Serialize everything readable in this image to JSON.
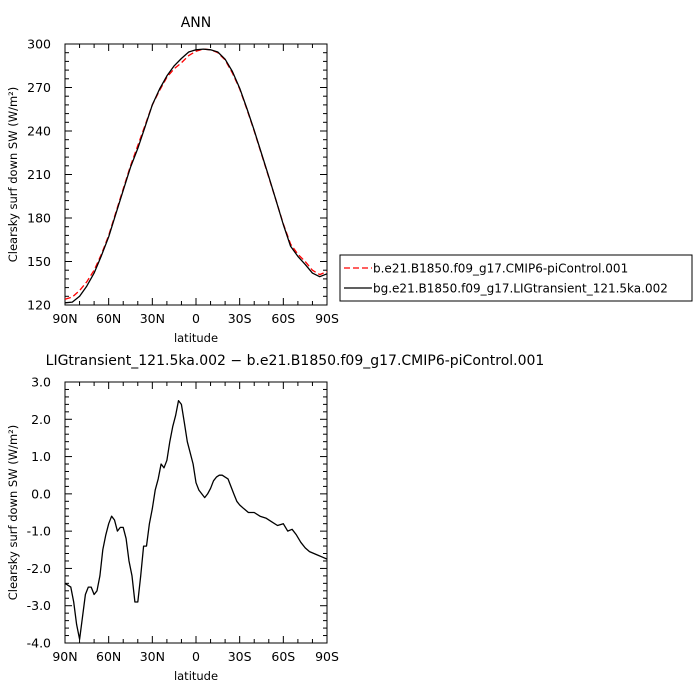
{
  "chart_data": [
    {
      "type": "line",
      "title": "ANN",
      "xlabel": "latitude",
      "ylabel": "Clearsky surf down SW (W/m²)",
      "xlim": [
        90,
        -90
      ],
      "ylim": [
        120,
        300
      ],
      "x_tick_values": [
        90,
        60,
        30,
        0,
        -30,
        -60,
        -90
      ],
      "x_tick_labels": [
        "90N",
        "60N",
        "30N",
        "0",
        "30S",
        "60S",
        "90S"
      ],
      "y_tick_values": [
        120,
        150,
        180,
        210,
        240,
        270,
        300
      ],
      "y_tick_labels": [
        "120",
        "150",
        "180",
        "210",
        "240",
        "270",
        "300"
      ],
      "grid": false,
      "legend_position": "right",
      "series": [
        {
          "name": "b.e21.B1850.f09_g17.CMIP6-piControl.001",
          "color": "#ff0000",
          "style": "dashed",
          "x": [
            90,
            85,
            80,
            75,
            70,
            65,
            60,
            55,
            50,
            45,
            40,
            35,
            30,
            25,
            20,
            15,
            10,
            5,
            0,
            -5,
            -10,
            -15,
            -20,
            -25,
            -30,
            -35,
            -40,
            -45,
            -50,
            -55,
            -60,
            -65,
            -70,
            -75,
            -80,
            -85,
            -90
          ],
          "y": [
            124,
            125.5,
            130,
            136,
            144,
            155,
            168,
            184,
            200,
            216,
            230,
            244,
            258,
            268,
            277,
            283,
            287,
            292,
            295,
            296.5,
            296,
            294,
            289,
            280,
            269,
            255,
            240,
            224,
            208,
            192,
            176,
            162,
            155,
            150,
            144,
            141,
            143
          ]
        },
        {
          "name": "bg.e21.B1850.f09_g17.LIGtransient_121.5ka.002",
          "color": "#000000",
          "style": "solid",
          "x": [
            90,
            85,
            80,
            75,
            70,
            65,
            60,
            55,
            50,
            45,
            40,
            35,
            30,
            25,
            20,
            15,
            10,
            5,
            0,
            -5,
            -10,
            -15,
            -20,
            -25,
            -30,
            -35,
            -40,
            -45,
            -50,
            -55,
            -60,
            -65,
            -70,
            -75,
            -80,
            -85,
            -90
          ],
          "y": [
            121.5,
            122,
            126,
            133,
            142,
            154,
            167,
            183,
            199,
            215,
            228,
            243,
            258,
            269,
            278,
            285,
            290,
            294.5,
            296,
            296.5,
            296,
            294.5,
            289.5,
            281,
            269.5,
            255.5,
            240.5,
            224.5,
            208.5,
            192,
            175.5,
            160.5,
            153.5,
            148,
            142,
            139.5,
            141.5
          ]
        }
      ]
    },
    {
      "type": "line",
      "title": "LIGtransient_121.5ka.002 − b.e21.B1850.f09_g17.CMIP6-piControl.001",
      "xlabel": "latitude",
      "ylabel": "Clearsky surf down SW (W/m²)",
      "xlim": [
        90,
        -90
      ],
      "ylim": [
        -4.0,
        3.0
      ],
      "x_tick_values": [
        90,
        60,
        30,
        0,
        -30,
        -60,
        -90
      ],
      "x_tick_labels": [
        "90N",
        "60N",
        "30N",
        "0",
        "30S",
        "60S",
        "90S"
      ],
      "y_tick_values": [
        -4.0,
        -3.0,
        -2.0,
        -1.0,
        0.0,
        1.0,
        2.0,
        3.0
      ],
      "y_tick_labels": [
        "-4.0",
        "-3.0",
        "-2.0",
        "-1.0",
        "0.0",
        "1.0",
        "2.0",
        "3.0"
      ],
      "grid": false,
      "series": [
        {
          "color": "#000000",
          "style": "solid",
          "x": [
            90,
            86,
            84,
            82,
            80,
            78,
            76,
            74,
            72,
            70,
            68,
            66,
            64,
            62,
            60,
            58,
            56,
            54,
            52,
            50,
            48,
            46,
            44,
            42,
            40,
            38,
            36,
            34,
            32,
            30,
            28,
            26,
            24,
            22,
            20,
            18,
            16,
            14,
            12,
            10,
            8,
            6,
            4,
            2,
            0,
            -2,
            -4,
            -6,
            -8,
            -10,
            -12,
            -14,
            -16,
            -18,
            -20,
            -22,
            -24,
            -26,
            -28,
            -30,
            -33,
            -36,
            -40,
            -44,
            -48,
            -52,
            -56,
            -60,
            -63,
            -66,
            -69,
            -72,
            -75,
            -78,
            -81,
            -84,
            -87,
            -90
          ],
          "y": [
            -2.4,
            -2.5,
            -2.9,
            -3.5,
            -3.9,
            -3.3,
            -2.7,
            -2.5,
            -2.5,
            -2.7,
            -2.6,
            -2.2,
            -1.5,
            -1.1,
            -0.8,
            -0.6,
            -0.7,
            -1.0,
            -0.9,
            -0.9,
            -1.2,
            -1.8,
            -2.2,
            -2.9,
            -2.9,
            -2.2,
            -1.4,
            -1.4,
            -0.8,
            -0.4,
            0.1,
            0.4,
            0.8,
            0.7,
            0.9,
            1.4,
            1.8,
            2.1,
            2.5,
            2.4,
            1.9,
            1.4,
            1.1,
            0.8,
            0.3,
            0.1,
            0.0,
            -0.1,
            0.0,
            0.15,
            0.35,
            0.45,
            0.5,
            0.5,
            0.45,
            0.4,
            0.2,
            0.0,
            -0.2,
            -0.3,
            -0.4,
            -0.5,
            -0.5,
            -0.6,
            -0.65,
            -0.75,
            -0.85,
            -0.8,
            -1.0,
            -0.95,
            -1.1,
            -1.3,
            -1.45,
            -1.55,
            -1.6,
            -1.65,
            -1.7,
            -1.75
          ]
        }
      ]
    }
  ]
}
